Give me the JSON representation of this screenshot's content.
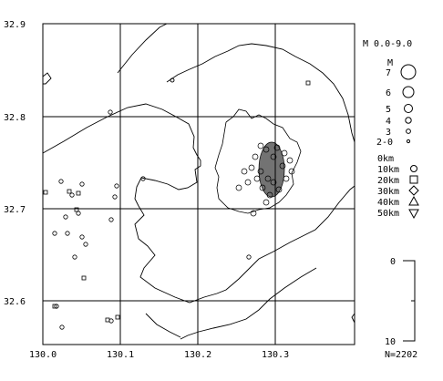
{
  "map": {
    "lat_labels": [
      "32.9",
      "32.8",
      "32.7",
      "32.6"
    ],
    "lon_labels": [
      "130.0",
      "130.1",
      "130.2",
      "130.3"
    ],
    "lat_range": [
      32.55,
      32.9
    ],
    "lon_range": [
      130.0,
      130.4
    ]
  },
  "legend": {
    "magnitude_title": "M 0.0-9.0",
    "magnitude_header": "M",
    "magnitudes": [
      "7",
      "6",
      "5",
      "4",
      "3",
      "2-0"
    ],
    "depths": [
      "0km",
      "10km",
      "20km",
      "30km",
      "40km",
      "50km"
    ],
    "depth_axis_top": "0",
    "depth_axis_bottom": "10",
    "count": "N=2202"
  }
}
